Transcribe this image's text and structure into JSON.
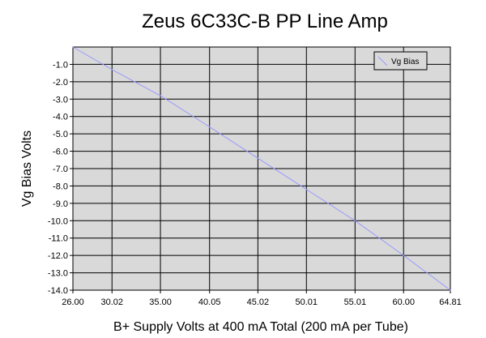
{
  "chart_data": {
    "type": "line",
    "title": "Zeus 6C33C-B PP Line Amp",
    "xlabel": "B+ Supply Volts at 400 mA Total (200 mA per Tube)",
    "ylabel": "Vg Bias Volts",
    "xlim": [
      26.0,
      64.81
    ],
    "ylim": [
      -14.0,
      0.0
    ],
    "x_ticks": [
      "26.00",
      "30.02",
      "35.00",
      "40.05",
      "45.02",
      "50.01",
      "55.01",
      "60.00",
      "64.81"
    ],
    "y_ticks": [
      "-1.0",
      "-2.0",
      "-3.0",
      "-4.0",
      "-5.0",
      "-6.0",
      "-7.0",
      "-8.0",
      "-9.0",
      "-10.0",
      "-11.0",
      "-12.0",
      "-13.0",
      "-14.0"
    ],
    "grid": true,
    "legend_position": "top-right",
    "series": [
      {
        "name": "Vg Bias",
        "color": "#9999ff",
        "x": [
          26.0,
          30.02,
          35.0,
          40.05,
          45.02,
          50.01,
          55.01,
          60.0,
          64.81
        ],
        "y": [
          0.0,
          -1.3,
          -2.8,
          -4.6,
          -6.4,
          -8.2,
          -10.0,
          -12.0,
          -14.0
        ]
      }
    ]
  }
}
